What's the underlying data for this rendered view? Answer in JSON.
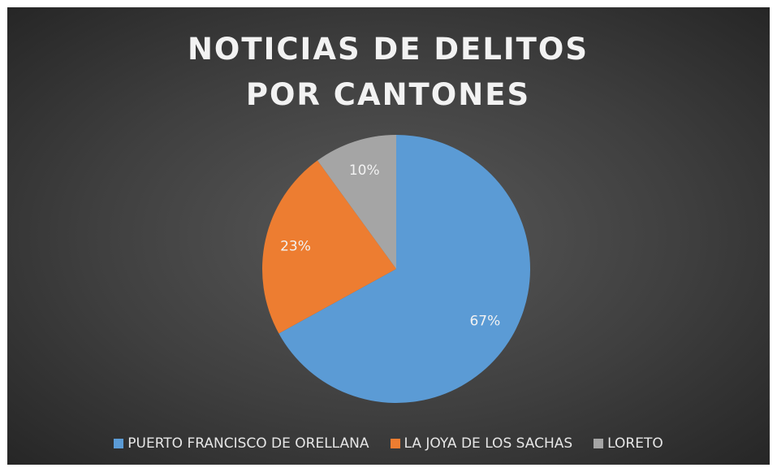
{
  "chart_data": {
    "type": "pie",
    "title": "NOTICIAS DE DELITOS POR CANTONES",
    "categories": [
      "PUERTO FRANCISCO DE ORELLANA",
      "LA JOYA DE LOS SACHAS",
      "LORETO"
    ],
    "values": [
      67,
      23,
      10
    ],
    "value_labels": [
      "67%",
      "23%",
      "10%"
    ],
    "colors": [
      "#5b9bd5",
      "#ed7d31",
      "#a5a5a5"
    ],
    "legend": "bottom"
  }
}
